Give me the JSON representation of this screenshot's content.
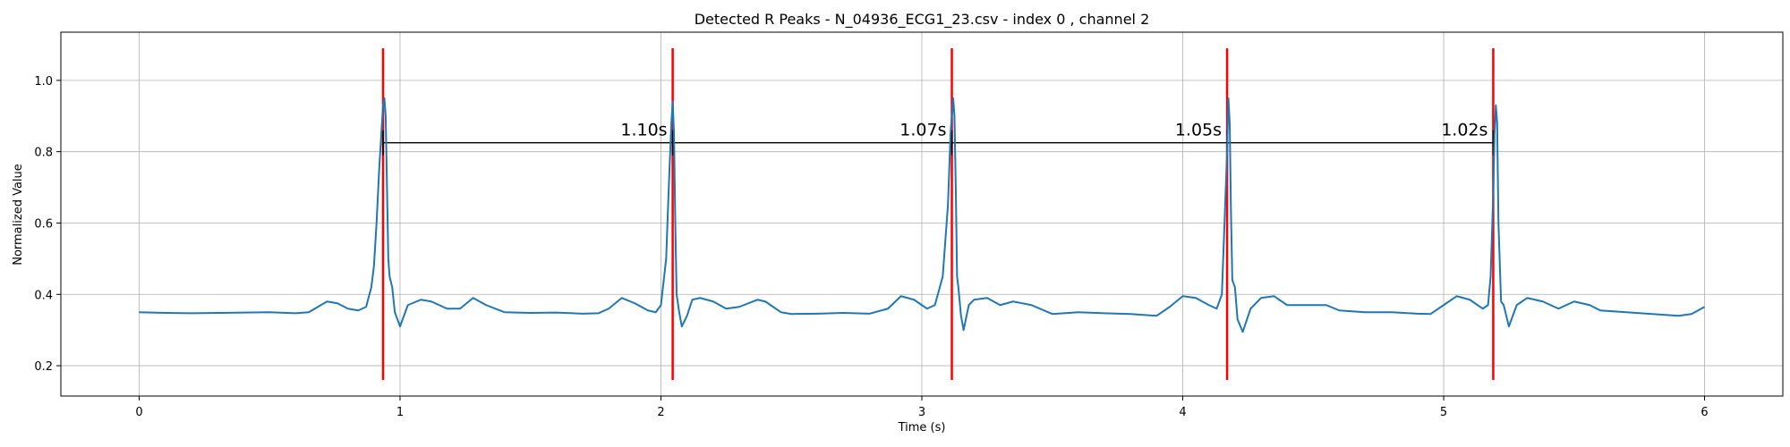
{
  "chart_data": {
    "type": "line",
    "title": "Detected R Peaks - N_04936_ECG1_23.csv - index 0 , channel 2",
    "xlabel": "Time (s)",
    "ylabel": "Normalized Value",
    "xlim": [
      -0.3,
      6.3
    ],
    "ylim": [
      0.115,
      1.135
    ],
    "x_ticks": [
      0,
      1,
      2,
      3,
      4,
      5,
      6
    ],
    "y_ticks": [
      0.2,
      0.4,
      0.6,
      0.8,
      1.0
    ],
    "grid": true,
    "series": [
      {
        "color": "#1f77b4",
        "x": [
          0.0,
          0.1,
          0.2,
          0.3,
          0.4,
          0.5,
          0.6,
          0.65,
          0.72,
          0.76,
          0.8,
          0.84,
          0.87,
          0.89,
          0.9,
          0.91,
          0.92,
          0.93,
          0.935,
          0.94,
          0.945,
          0.95,
          0.955,
          0.96,
          0.97,
          0.98,
          0.99,
          1.0,
          1.03,
          1.08,
          1.12,
          1.18,
          1.23,
          1.28,
          1.33,
          1.4,
          1.5,
          1.6,
          1.7,
          1.76,
          1.8,
          1.85,
          1.9,
          1.95,
          1.98,
          2.0,
          2.02,
          2.03,
          2.04,
          2.045,
          2.05,
          2.055,
          2.06,
          2.07,
          2.08,
          2.1,
          2.12,
          2.15,
          2.2,
          2.25,
          2.3,
          2.37,
          2.4,
          2.46,
          2.5,
          2.6,
          2.7,
          2.8,
          2.87,
          2.92,
          2.97,
          3.02,
          3.05,
          3.08,
          3.1,
          3.11,
          3.12,
          3.125,
          3.13,
          3.135,
          3.14,
          3.15,
          3.16,
          3.18,
          3.2,
          3.25,
          3.3,
          3.35,
          3.42,
          3.5,
          3.6,
          3.7,
          3.8,
          3.9,
          3.95,
          4.0,
          4.05,
          4.1,
          4.13,
          4.15,
          4.16,
          4.17,
          4.175,
          4.18,
          4.185,
          4.19,
          4.2,
          4.21,
          4.23,
          4.26,
          4.3,
          4.35,
          4.4,
          4.48,
          4.55,
          4.6,
          4.7,
          4.8,
          4.9,
          4.95,
          5.0,
          5.05,
          5.1,
          5.15,
          5.17,
          5.18,
          5.19,
          5.195,
          5.2,
          5.205,
          5.21,
          5.22,
          5.23,
          5.25,
          5.28,
          5.32,
          5.38,
          5.44,
          5.5,
          5.56,
          5.6,
          5.7,
          5.8,
          5.9,
          5.95,
          6.0
        ],
        "y": [
          0.35,
          0.348,
          0.347,
          0.348,
          0.349,
          0.35,
          0.347,
          0.35,
          0.38,
          0.375,
          0.36,
          0.355,
          0.365,
          0.42,
          0.48,
          0.6,
          0.75,
          0.87,
          0.93,
          0.95,
          0.9,
          0.7,
          0.5,
          0.45,
          0.42,
          0.35,
          0.33,
          0.31,
          0.37,
          0.385,
          0.38,
          0.36,
          0.36,
          0.39,
          0.37,
          0.35,
          0.348,
          0.349,
          0.346,
          0.347,
          0.36,
          0.39,
          0.375,
          0.355,
          0.35,
          0.37,
          0.5,
          0.7,
          0.88,
          0.94,
          0.85,
          0.6,
          0.4,
          0.35,
          0.31,
          0.34,
          0.385,
          0.39,
          0.38,
          0.36,
          0.365,
          0.385,
          0.38,
          0.35,
          0.345,
          0.346,
          0.348,
          0.346,
          0.36,
          0.395,
          0.385,
          0.36,
          0.37,
          0.45,
          0.65,
          0.85,
          0.95,
          0.9,
          0.7,
          0.45,
          0.42,
          0.34,
          0.3,
          0.37,
          0.385,
          0.39,
          0.37,
          0.38,
          0.37,
          0.345,
          0.35,
          0.347,
          0.345,
          0.34,
          0.365,
          0.395,
          0.39,
          0.37,
          0.36,
          0.4,
          0.6,
          0.8,
          0.95,
          0.88,
          0.62,
          0.44,
          0.42,
          0.33,
          0.295,
          0.36,
          0.39,
          0.395,
          0.37,
          0.37,
          0.37,
          0.355,
          0.35,
          0.35,
          0.346,
          0.345,
          0.37,
          0.395,
          0.385,
          0.36,
          0.37,
          0.45,
          0.68,
          0.85,
          0.93,
          0.88,
          0.6,
          0.38,
          0.37,
          0.31,
          0.37,
          0.39,
          0.38,
          0.36,
          0.38,
          0.37,
          0.355,
          0.35,
          0.345,
          0.34,
          0.345,
          0.365
        ]
      }
    ],
    "r_peaks": {
      "color": "#ff0000",
      "x": [
        0.935,
        2.045,
        3.115,
        4.17,
        5.19
      ],
      "y_range": [
        0.16,
        1.09
      ]
    },
    "rr_intervals": {
      "color": "#000000",
      "y": 0.825,
      "marker_y": [
        0.79,
        0.86
      ],
      "labels": [
        "1.10s",
        "1.07s",
        "1.05s",
        "1.02s"
      ]
    }
  }
}
